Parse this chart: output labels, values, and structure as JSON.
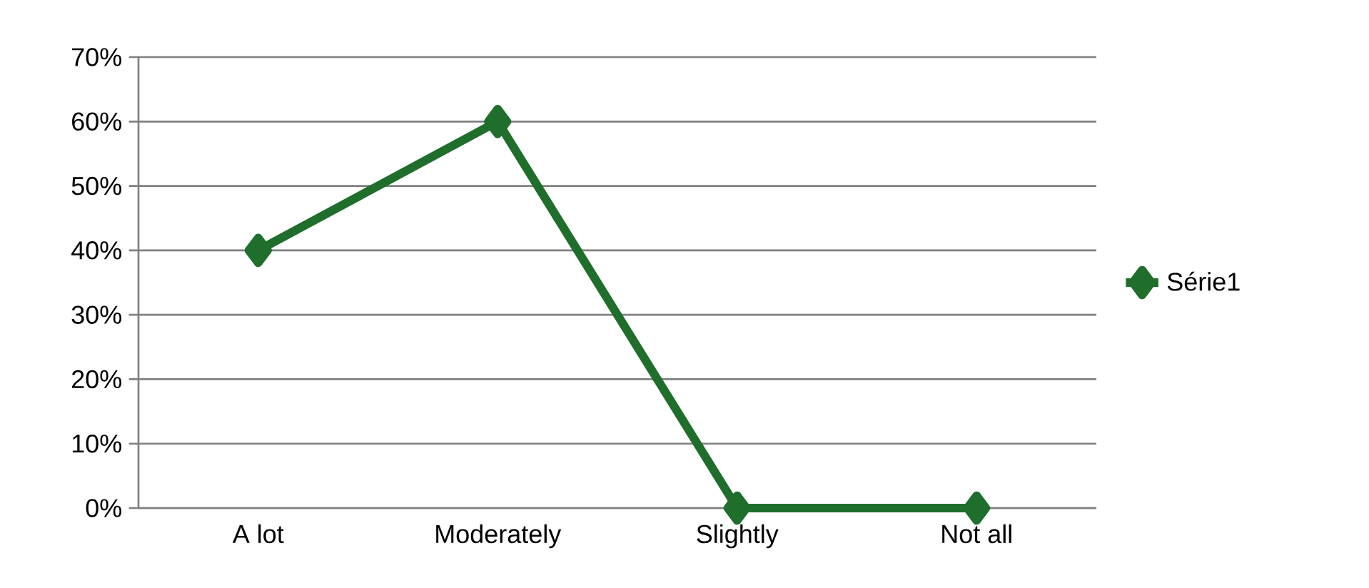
{
  "chart_data": {
    "type": "line",
    "categories": [
      "A lot",
      "Moderately",
      "Slightly",
      "Not all"
    ],
    "series": [
      {
        "name": "Série1",
        "color": "#1f6e2b",
        "values": [
          40,
          60,
          0,
          0
        ]
      }
    ],
    "ylim": [
      0,
      70
    ],
    "yticks": [
      {
        "value": 0,
        "label": "0%"
      },
      {
        "value": 10,
        "label": "10%"
      },
      {
        "value": 20,
        "label": "20%"
      },
      {
        "value": 30,
        "label": "30%"
      },
      {
        "value": 40,
        "label": "40%"
      },
      {
        "value": 50,
        "label": "50%"
      },
      {
        "value": 60,
        "label": "60%"
      },
      {
        "value": 70,
        "label": "70%"
      }
    ],
    "grid": "y",
    "legend": "right",
    "marker": "diamond",
    "line_style": "solid"
  }
}
